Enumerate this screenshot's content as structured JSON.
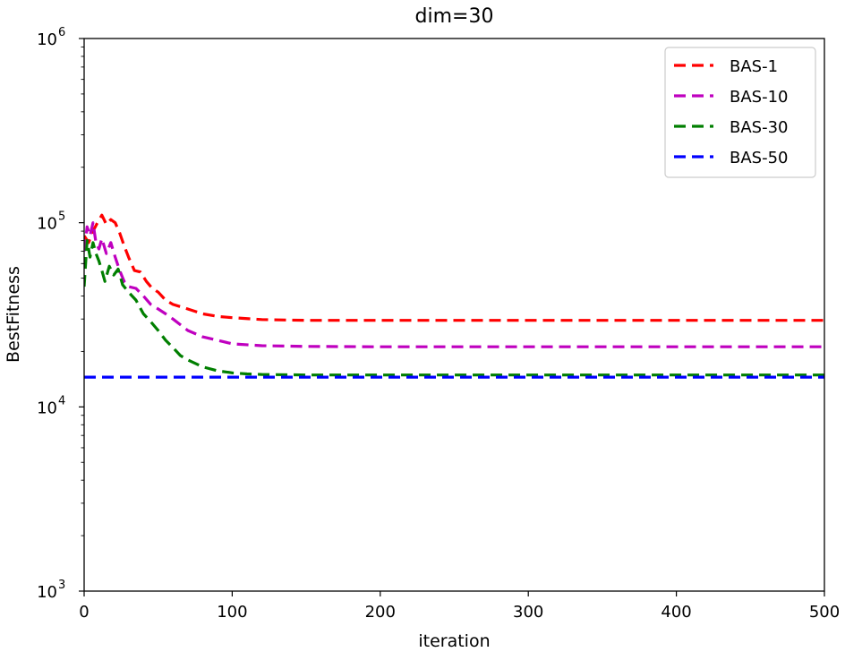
{
  "chart_data": {
    "type": "line",
    "title": "dim=30",
    "xlabel": "iteration",
    "ylabel": "BestFitness",
    "xlim": [
      0,
      500
    ],
    "ylim": [
      1000,
      1000000
    ],
    "yscale": "log",
    "grid": false,
    "legend_position": "top-right",
    "x_ticks": [
      0,
      100,
      200,
      300,
      400,
      500
    ],
    "y_ticks": [
      {
        "value": 1000,
        "base": "10",
        "exp": "3"
      },
      {
        "value": 10000,
        "base": "10",
        "exp": "4"
      },
      {
        "value": 100000,
        "base": "10",
        "exp": "5"
      },
      {
        "value": 1000000,
        "base": "10",
        "exp": "6"
      }
    ],
    "series": [
      {
        "name": "BAS-1",
        "color": "#ff0000",
        "x": [
          0,
          3,
          6,
          9,
          12,
          15,
          18,
          21,
          24,
          27,
          30,
          34,
          38,
          42,
          46,
          50,
          55,
          60,
          70,
          80,
          90,
          100,
          120,
          150,
          200,
          300,
          400,
          500
        ],
        "y": [
          85000,
          78000,
          90000,
          100000,
          110000,
          98000,
          104000,
          100000,
          88000,
          75000,
          65000,
          55000,
          54000,
          48000,
          44000,
          42000,
          38000,
          36000,
          34000,
          32000,
          31000,
          30500,
          29800,
          29500,
          29500,
          29500,
          29500,
          29500
        ]
      },
      {
        "name": "BAS-10",
        "color": "#bf00bf",
        "x": [
          0,
          2,
          4,
          6,
          8,
          10,
          12,
          15,
          18,
          21,
          24,
          27,
          30,
          35,
          40,
          45,
          50,
          55,
          60,
          70,
          80,
          90,
          100,
          120,
          150,
          200,
          300,
          400,
          500
        ],
        "y": [
          70000,
          95000,
          85000,
          100000,
          78000,
          72000,
          82000,
          68000,
          78000,
          65000,
          55000,
          48000,
          45000,
          44000,
          40000,
          36000,
          34000,
          32000,
          30000,
          26000,
          24000,
          23000,
          22000,
          21500,
          21300,
          21200,
          21200,
          21200,
          21200
        ]
      },
      {
        "name": "BAS-30",
        "color": "#007f00",
        "x": [
          0,
          2,
          4,
          6,
          8,
          10,
          12,
          14,
          17,
          20,
          23,
          26,
          30,
          35,
          40,
          45,
          50,
          55,
          60,
          65,
          70,
          80,
          90,
          100,
          110,
          120,
          150,
          200,
          300,
          400,
          500
        ],
        "y": [
          45000,
          80000,
          65000,
          78000,
          68000,
          62000,
          55000,
          48000,
          58000,
          52000,
          56000,
          46000,
          42000,
          38000,
          32000,
          29000,
          26000,
          23000,
          21000,
          19000,
          18000,
          16500,
          15700,
          15300,
          15100,
          15000,
          14900,
          14900,
          14900,
          14900,
          14900
        ]
      },
      {
        "name": "BAS-50",
        "color": "#0000ff",
        "x": [
          0,
          500
        ],
        "y": [
          14500,
          14500
        ]
      }
    ]
  }
}
